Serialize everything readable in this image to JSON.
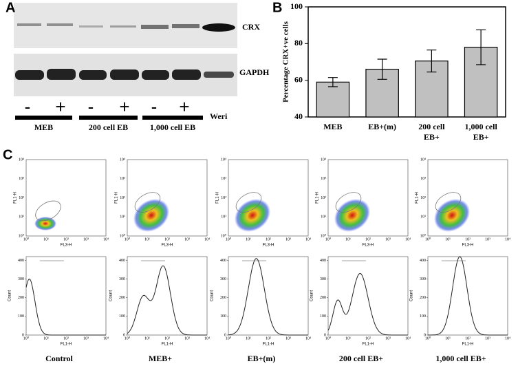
{
  "panel_labels": [
    "A",
    "B",
    "C"
  ],
  "blot": {
    "bands": [
      "CRX",
      "GAPDH"
    ],
    "lane_signs": [
      "-",
      "+",
      "-",
      "+",
      "-",
      "+"
    ],
    "control_lane": "Weri",
    "groups": [
      "MEB",
      "200 cell EB",
      "1,000 cell EB"
    ]
  },
  "chart_data": {
    "type": "bar",
    "ylabel": "Percentage CRX+ve cells",
    "categories": [
      "MEB",
      "EB+(m)",
      "200 cell EB+",
      "1,000 cell EB+"
    ],
    "values": [
      59,
      66,
      70.5,
      78
    ],
    "errors": [
      2.5,
      5.5,
      6,
      9.5
    ],
    "color": "#c0c0c0",
    "ylim": [
      40,
      100
    ],
    "yticks": [
      40,
      60,
      80,
      100
    ]
  },
  "flow": {
    "scatter_xlabel": "FL3-H",
    "scatter_ylabel": "FL1-H",
    "hist_xlabel": "FL1-H",
    "hist_ylabel": "Count",
    "log_ticks": [
      "10⁰",
      "10¹",
      "10²",
      "10³",
      "10⁴"
    ],
    "hist_yticks": [
      0,
      100,
      200,
      300,
      400
    ],
    "samples": [
      "Control",
      "MEB+",
      "EB+(m)",
      "200 cell EB+",
      "1,000 cell EB+"
    ]
  }
}
